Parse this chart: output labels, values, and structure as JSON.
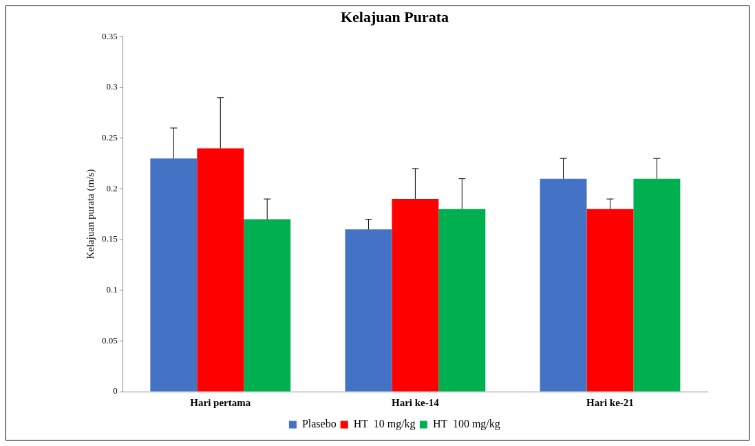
{
  "chart_data": {
    "type": "bar",
    "title": "Kelajuan Purata",
    "ylabel": "Kelajuan purata (m/s)",
    "categories": [
      "Hari pertama",
      "Hari ke-14",
      "Hari ke-21"
    ],
    "series": [
      {
        "name": "Plasebo",
        "color": "#4472c4",
        "values": [
          0.23,
          0.16,
          0.21
        ],
        "errors": [
          [
            0.23,
            0.26
          ],
          [
            0.16,
            0.17
          ],
          [
            0.21,
            0.23
          ]
        ]
      },
      {
        "name": "HT  10 mg/kg",
        "color": "#ff0000",
        "values": [
          0.24,
          0.19,
          0.18
        ],
        "errors": [
          [
            0.24,
            0.29
          ],
          [
            0.19,
            0.22
          ],
          [
            0.18,
            0.19
          ]
        ]
      },
      {
        "name": "HT  100 mg/kg",
        "color": "#00b050",
        "values": [
          0.17,
          0.18,
          0.21
        ],
        "errors": [
          [
            0.17,
            0.19
          ],
          [
            0.18,
            0.21
          ],
          [
            0.21,
            0.23
          ]
        ]
      }
    ],
    "ylim": [
      0,
      0.35
    ],
    "yticks": [
      0,
      0.05,
      0.1,
      0.15,
      0.2,
      0.25,
      0.3,
      0.35
    ],
    "grid": false,
    "legend": "bottom"
  }
}
